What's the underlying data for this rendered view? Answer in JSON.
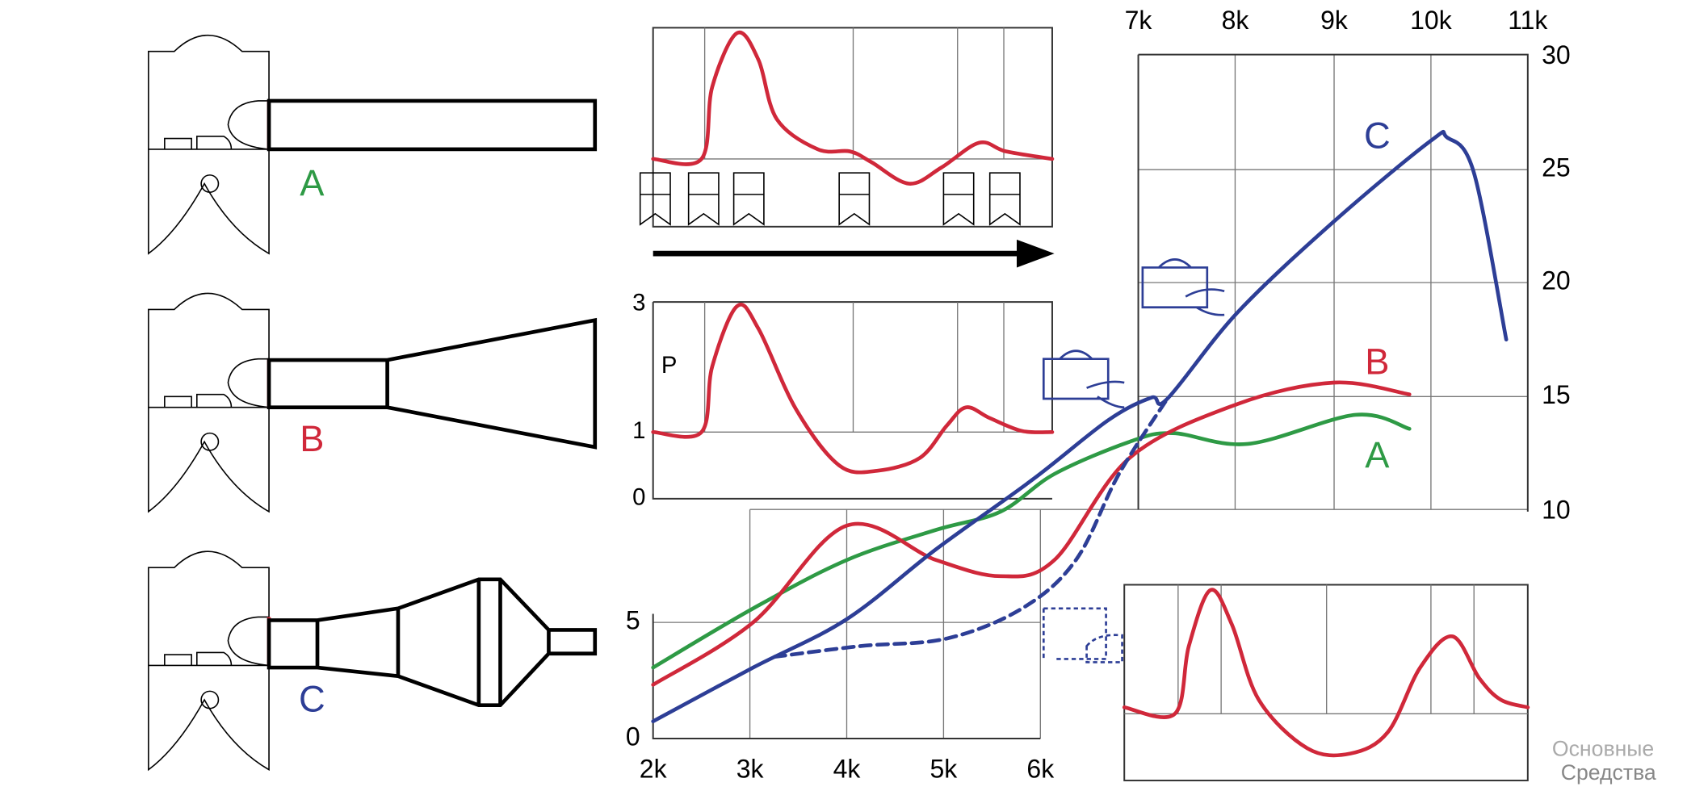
{
  "engines": [
    {
      "label": "A"
    },
    {
      "label": "B"
    },
    {
      "label": "C"
    }
  ],
  "power_chart": {
    "axis_label": "P",
    "ticks": [
      "3",
      "1",
      "0"
    ]
  },
  "main_chart": {
    "bottom_x_ticks": [
      "2k",
      "3k",
      "4k",
      "5k",
      "6k"
    ],
    "left_y_ticks": [
      "0",
      "5"
    ],
    "top_x_ticks": [
      "7k",
      "8k",
      "9k",
      "10k",
      "11k"
    ],
    "right_y_ticks": [
      "30",
      "25",
      "20",
      "15",
      "10"
    ],
    "curve_labels": [
      "C",
      "B",
      "A"
    ]
  },
  "watermark": [
    "Основные",
    "Средства"
  ]
}
